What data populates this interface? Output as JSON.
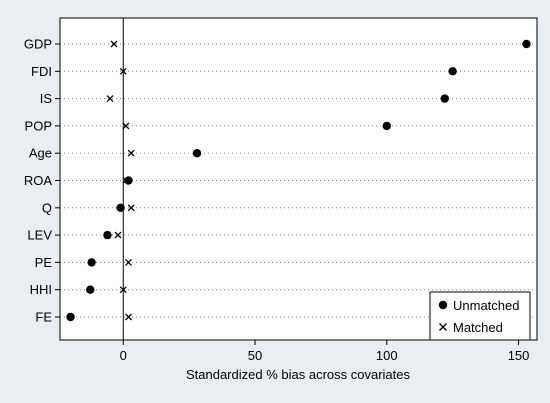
{
  "chart_data": {
    "type": "scatter",
    "title": "",
    "xlabel": "Standardized % bias across covariates",
    "ylabel": "",
    "xlim": [
      -24,
      157
    ],
    "xticks": [
      0,
      50,
      100,
      150
    ],
    "categories": [
      "GDP",
      "FDI",
      "IS",
      "POP",
      "Age",
      "ROA",
      "Q",
      "LEV",
      "PE",
      "HHI",
      "FE"
    ],
    "series": [
      {
        "name": "Unmatched",
        "marker": "circle",
        "values": [
          153,
          125,
          122,
          100,
          28,
          2,
          -1,
          -6,
          -12,
          -12.5,
          -20
        ]
      },
      {
        "name": "Matched",
        "marker": "x",
        "values": [
          -3.5,
          0,
          -5,
          1,
          3,
          1,
          3,
          -2,
          2,
          0,
          2
        ]
      }
    ],
    "reference_line": {
      "x": 0,
      "style": "solid"
    },
    "grid": "dotted horizontal lines at each category",
    "legend_placement": "bottom-right",
    "colors": {
      "background": "#e8eef3",
      "plot_area": "#ffffff",
      "marker": "#000000",
      "grid": "#7a7a7a"
    }
  }
}
